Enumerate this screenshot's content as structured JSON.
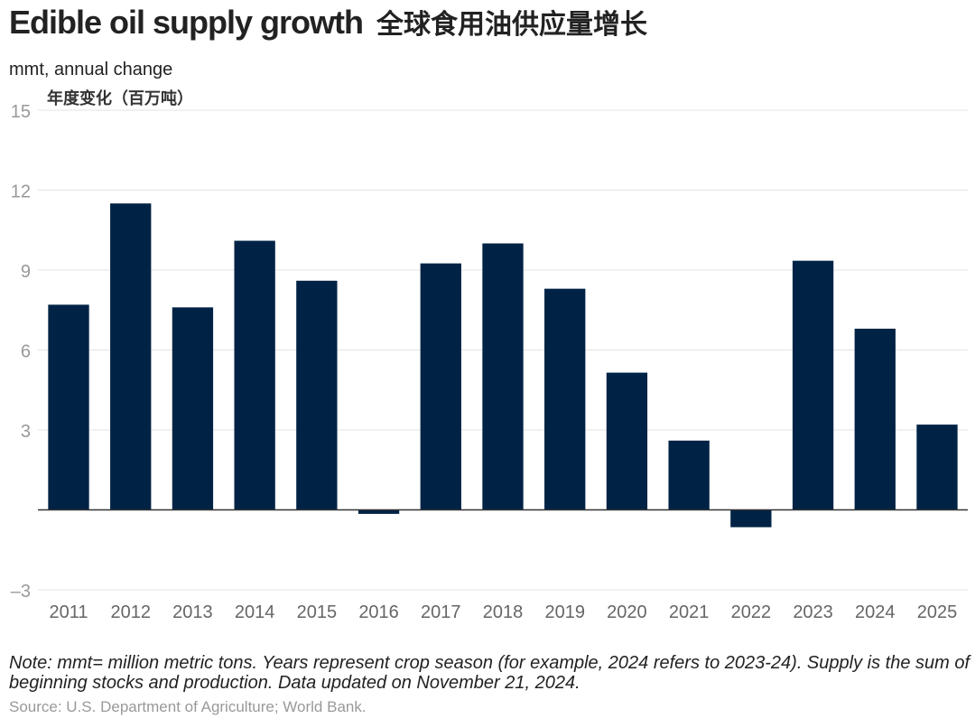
{
  "header": {
    "title": "Edible oil supply growth",
    "title_zh": "全球食用油供应量增长",
    "unit": "mmt, annual change",
    "unit_zh": "年度变化（百万吨）"
  },
  "footer": {
    "note": "Note: mmt= million metric tons. Years represent crop season (for example, 2024 refers to 2023-24). Supply is the sum of beginning stocks and production. Data updated on November 21, 2024.",
    "source": "Source: U.S. Department of Agriculture; World Bank."
  },
  "colors": {
    "bar": "#002345",
    "grid": "#e3e3e3",
    "zero_line": "#333333",
    "tick_text": "#999999",
    "x_tick_text": "#666666"
  },
  "chart_data": {
    "type": "bar",
    "title": "Edible oil supply growth",
    "ylabel": "mmt, annual change",
    "xlabel": "",
    "categories": [
      "2011",
      "2012",
      "2013",
      "2014",
      "2015",
      "2016",
      "2017",
      "2018",
      "2019",
      "2020",
      "2021",
      "2022",
      "2023",
      "2024",
      "2025"
    ],
    "values": [
      7.7,
      11.5,
      7.6,
      10.1,
      8.6,
      -0.15,
      9.25,
      10.0,
      8.3,
      5.15,
      2.6,
      -0.65,
      9.35,
      6.8,
      3.2
    ],
    "yticks": [
      -3,
      3,
      6,
      9,
      12,
      15
    ],
    "ytick_labels": [
      "–3",
      "3",
      "6",
      "9",
      "12",
      "15"
    ],
    "ylim": [
      -3,
      15
    ],
    "grid": true
  }
}
